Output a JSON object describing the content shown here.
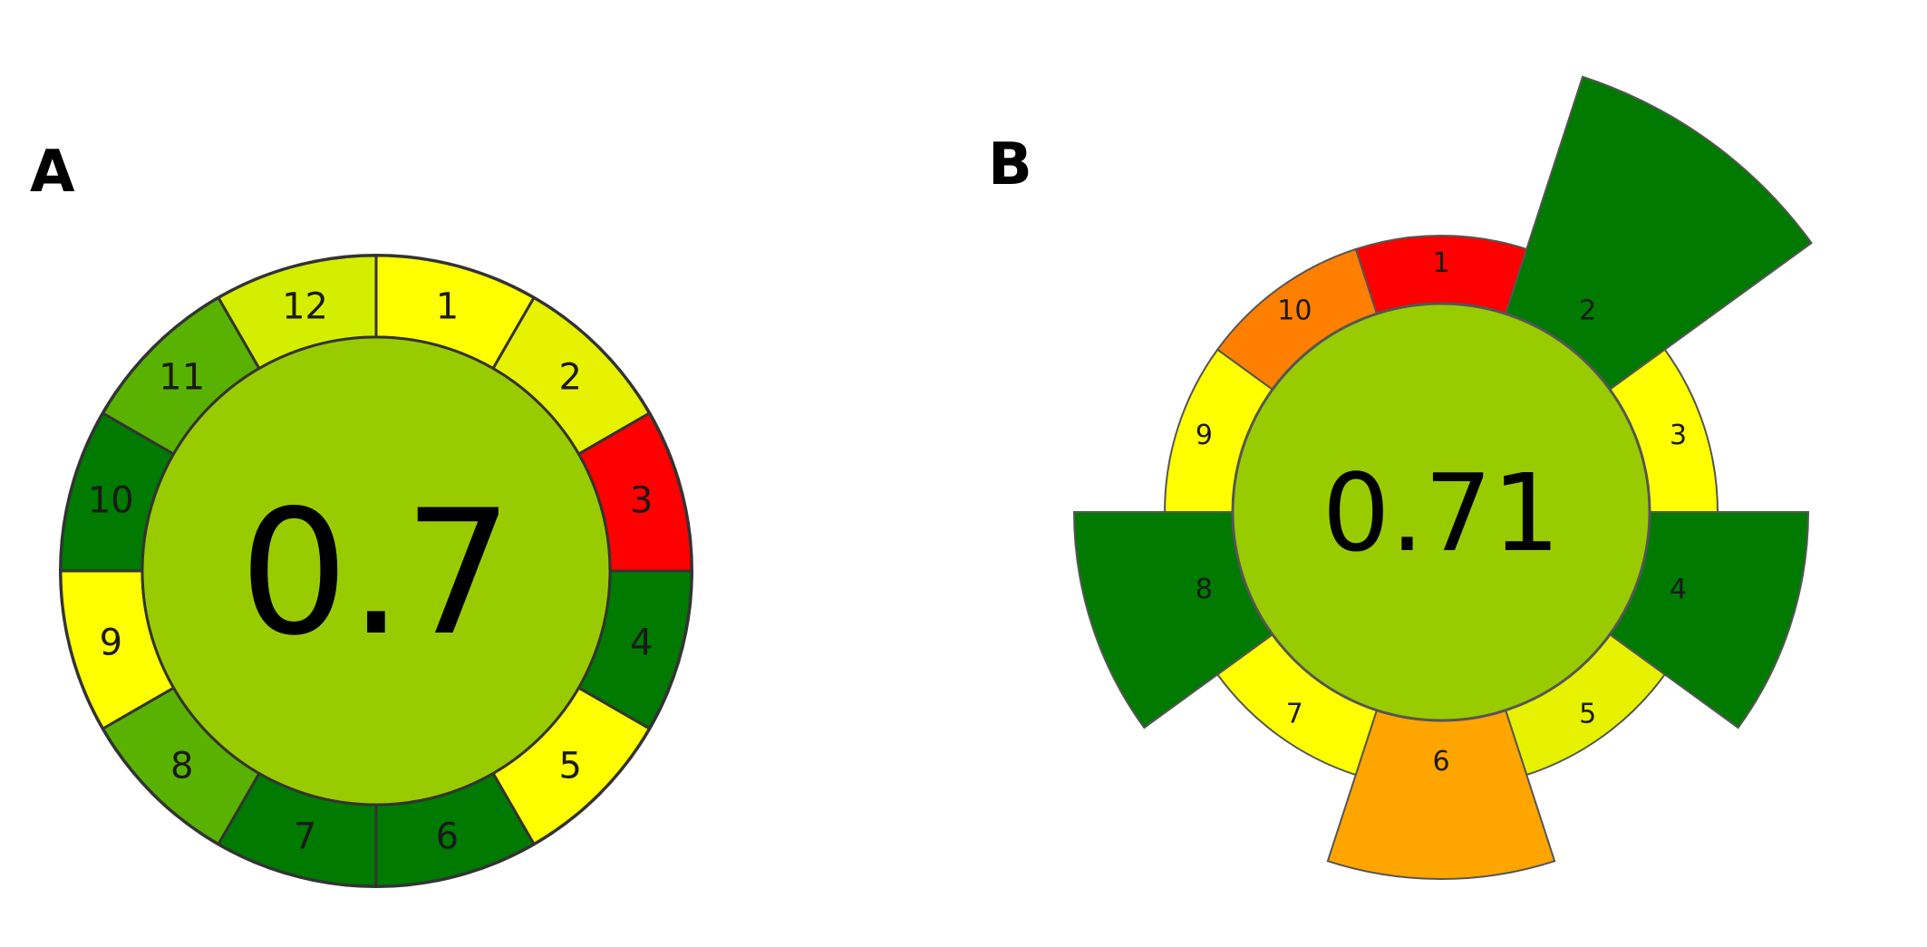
{
  "chart_data": [
    {
      "panel": "A",
      "type": "pie",
      "score": "0.7",
      "score_color": "#99CC00",
      "segments": [
        {
          "label": "1",
          "color": "#FFFF00"
        },
        {
          "label": "2",
          "color": "#E6F200"
        },
        {
          "label": "3",
          "color": "#FF0000"
        },
        {
          "label": "4",
          "color": "#007A00"
        },
        {
          "label": "5",
          "color": "#FFFF00"
        },
        {
          "label": "6",
          "color": "#007A00"
        },
        {
          "label": "7",
          "color": "#007A00"
        },
        {
          "label": "8",
          "color": "#5AB200"
        },
        {
          "label": "9",
          "color": "#FFFF00"
        },
        {
          "label": "10",
          "color": "#007A00"
        },
        {
          "label": "11",
          "color": "#5AB200"
        },
        {
          "label": "12",
          "color": "#D4EE00"
        }
      ]
    },
    {
      "panel": "B",
      "type": "pie",
      "score": "0.71",
      "score_color": "#99CC00",
      "segments": [
        {
          "label": "1",
          "color": "#FF0000",
          "weight": 2
        },
        {
          "label": "2",
          "color": "#007A00",
          "weight": 4
        },
        {
          "label": "3",
          "color": "#FFFF00",
          "weight": 2
        },
        {
          "label": "4",
          "color": "#007A00",
          "weight": 3
        },
        {
          "label": "5",
          "color": "#E6F200",
          "weight": 2
        },
        {
          "label": "6",
          "color": "#FFA500",
          "weight": 3
        },
        {
          "label": "7",
          "color": "#FFFF00",
          "weight": 2
        },
        {
          "label": "8",
          "color": "#007A00",
          "weight": 3
        },
        {
          "label": "9",
          "color": "#FFFF00",
          "weight": 2
        },
        {
          "label": "10",
          "color": "#FF7F00",
          "weight": 2
        }
      ]
    }
  ],
  "panel_letters": {
    "a": "A",
    "b": "B"
  }
}
